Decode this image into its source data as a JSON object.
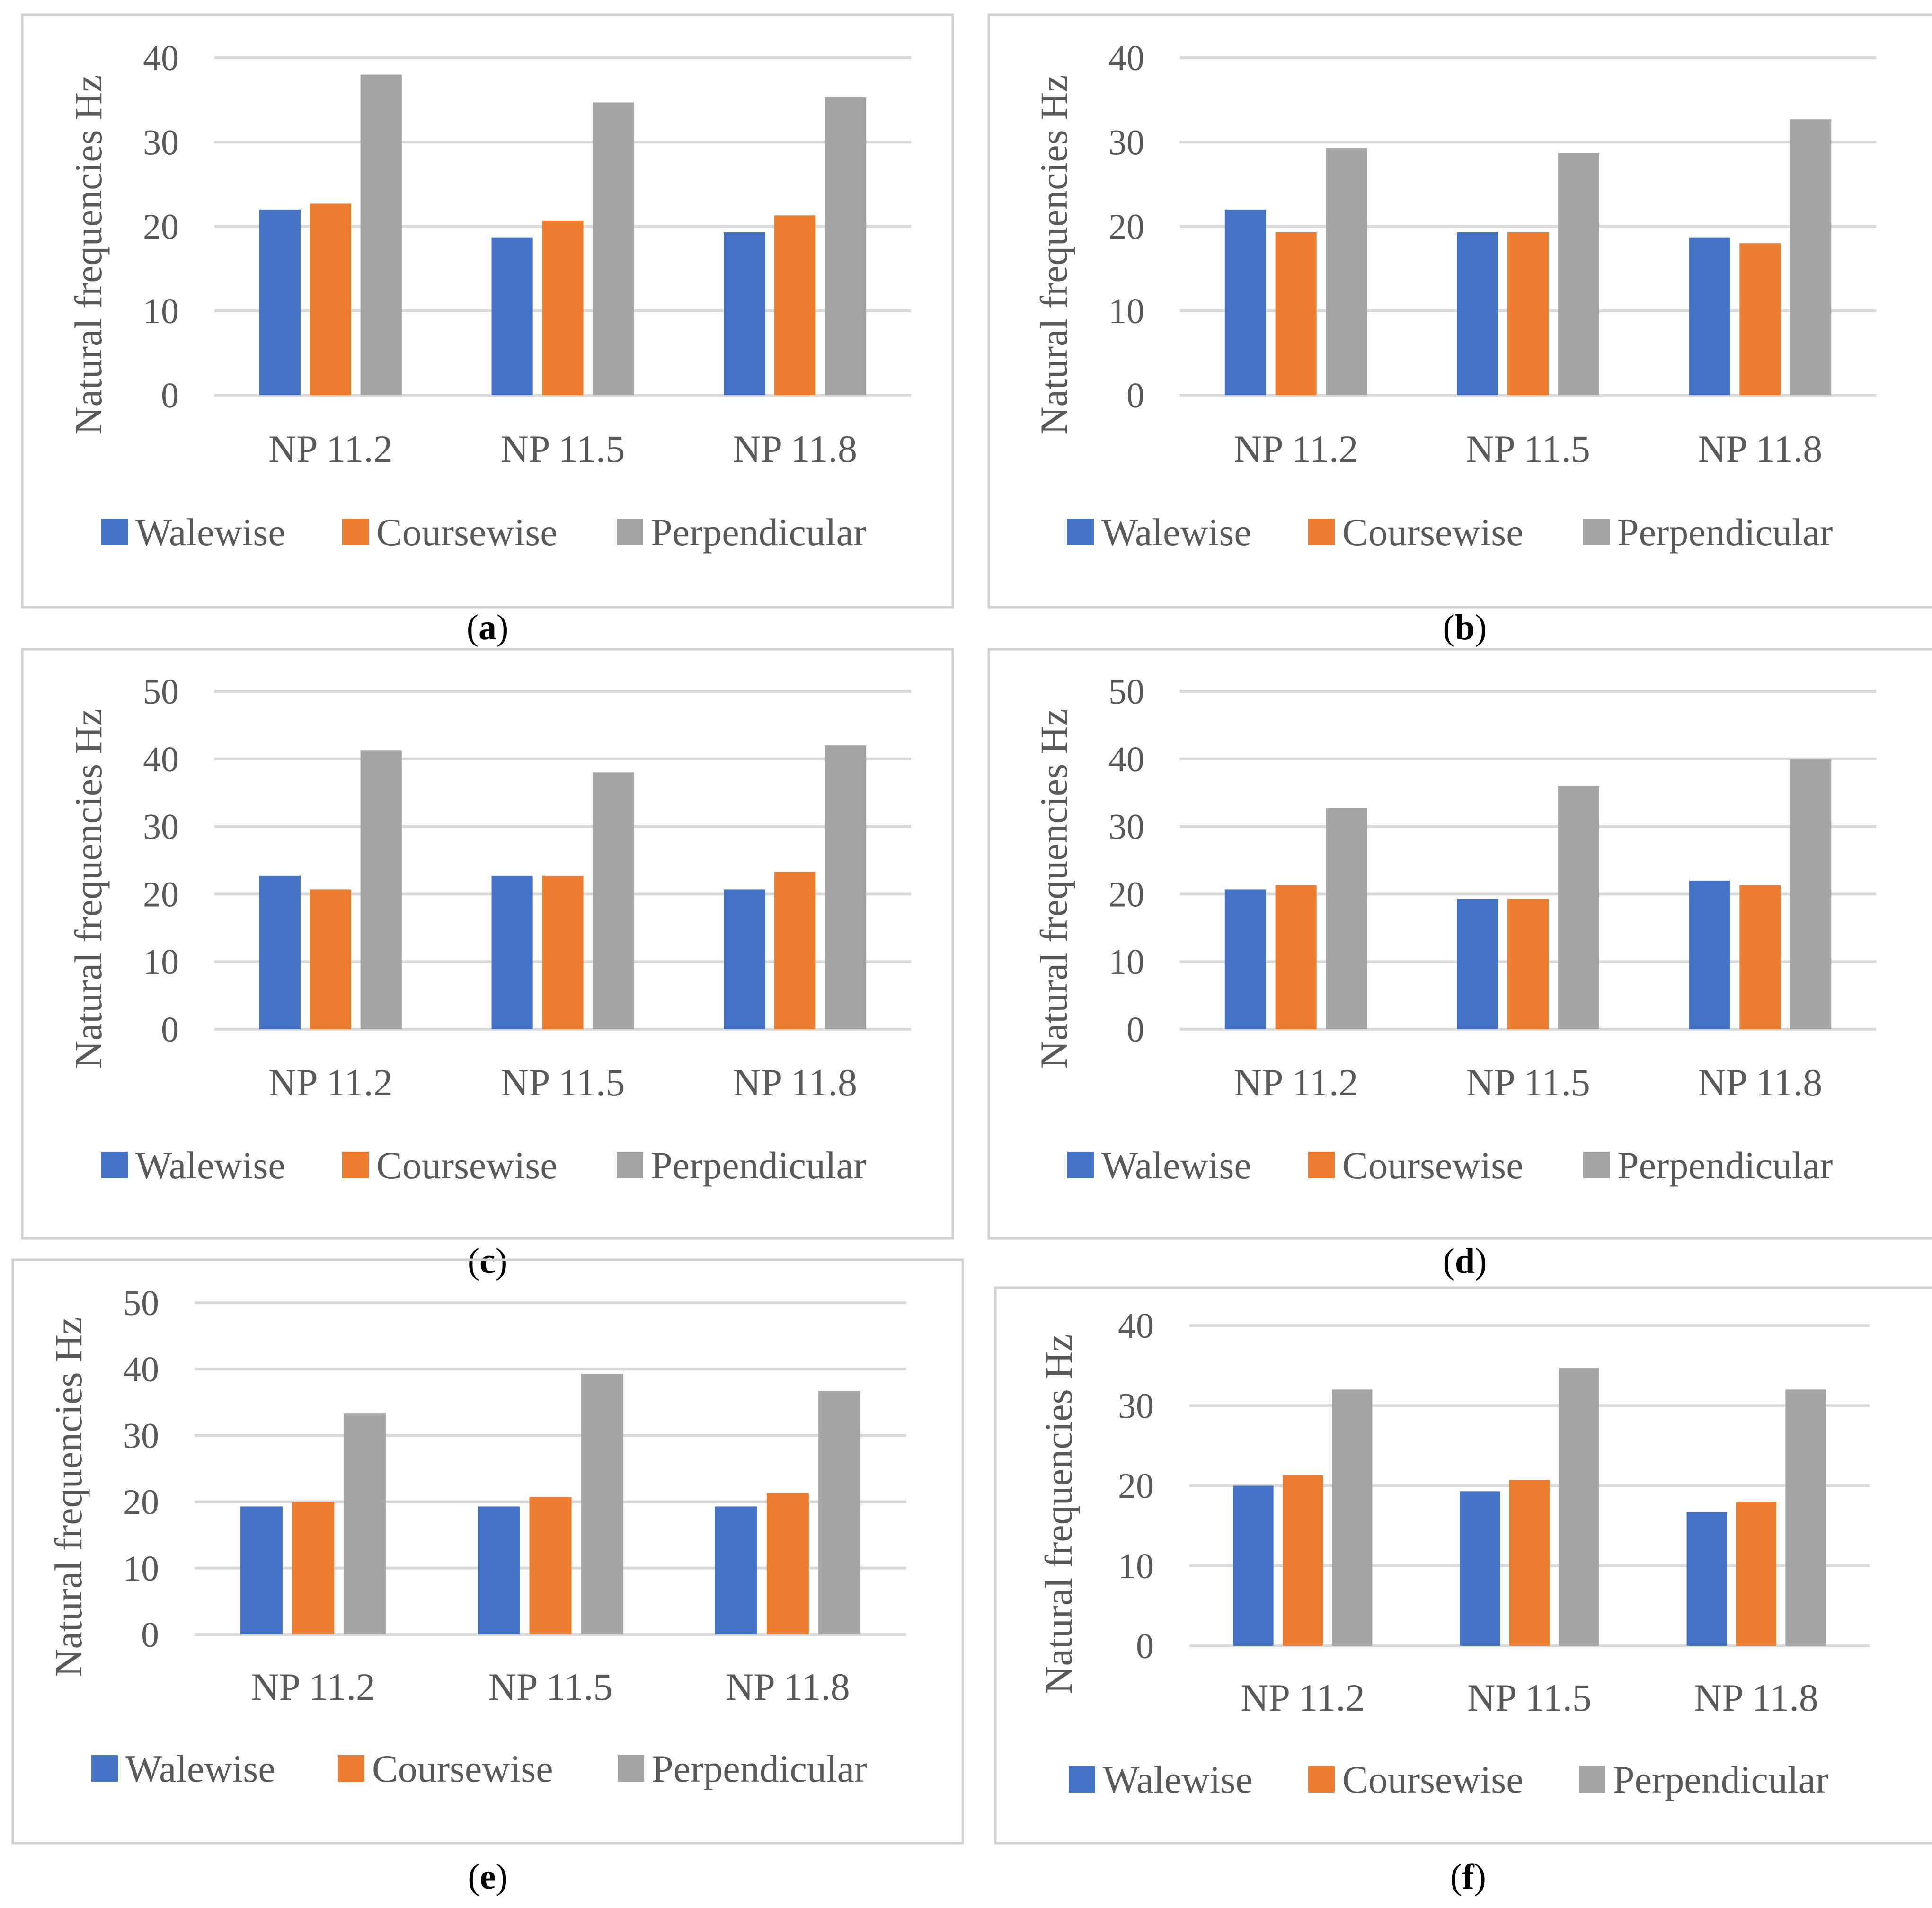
{
  "colors": {
    "Walewise": "#4472C4",
    "Coursewise": "#ED7D31",
    "Perpendicular": "#A5A5A5",
    "gridline": "#D9D9D9",
    "frame": "#D0D0D0",
    "text": "#595959",
    "caption": "#000000"
  },
  "chart_data": [
    {
      "type": "bar",
      "panel": "a",
      "caption": "a",
      "categories": [
        "NP 11.2",
        "NP 11.5",
        "NP 11.8"
      ],
      "ylabel": "Natural frequencies Hz",
      "xlabel": "",
      "ylim": [
        0,
        40
      ],
      "yticks": [
        0,
        10,
        20,
        30,
        40
      ],
      "grid": true,
      "legend_position": "bottom",
      "series": [
        {
          "name": "Walewise",
          "values": [
            22.0,
            18.7,
            19.3
          ]
        },
        {
          "name": "Coursewise",
          "values": [
            22.7,
            20.7,
            21.3
          ]
        },
        {
          "name": "Perpendicular",
          "values": [
            38.0,
            34.7,
            35.3
          ]
        }
      ]
    },
    {
      "type": "bar",
      "panel": "b",
      "caption": "b",
      "categories": [
        "NP 11.2",
        "NP 11.5",
        "NP 11.8"
      ],
      "ylabel": "Natural frequencies Hz",
      "xlabel": "",
      "ylim": [
        0,
        40
      ],
      "yticks": [
        0,
        10,
        20,
        30,
        40
      ],
      "grid": true,
      "legend_position": "bottom",
      "series": [
        {
          "name": "Walewise",
          "values": [
            22.0,
            19.3,
            18.7
          ]
        },
        {
          "name": "Coursewise",
          "values": [
            19.3,
            19.3,
            18.0
          ]
        },
        {
          "name": "Perpendicular",
          "values": [
            29.3,
            28.7,
            32.7
          ]
        }
      ]
    },
    {
      "type": "bar",
      "panel": "c",
      "caption": "c",
      "categories": [
        "NP 11.2",
        "NP 11.5",
        "NP 11.8"
      ],
      "ylabel": "Natural frequencies Hz",
      "xlabel": "",
      "ylim": [
        0,
        50
      ],
      "yticks": [
        0,
        10,
        20,
        30,
        40,
        50
      ],
      "grid": true,
      "legend_position": "bottom",
      "series": [
        {
          "name": "Walewise",
          "values": [
            22.7,
            22.7,
            20.7
          ]
        },
        {
          "name": "Coursewise",
          "values": [
            20.7,
            22.7,
            23.3
          ]
        },
        {
          "name": "Perpendicular",
          "values": [
            41.3,
            38.0,
            42.0
          ]
        }
      ]
    },
    {
      "type": "bar",
      "panel": "d",
      "caption": "d",
      "categories": [
        "NP 11.2",
        "NP 11.5",
        "NP 11.8"
      ],
      "ylabel": "Natural frequencies Hz",
      "xlabel": "",
      "ylim": [
        0,
        50
      ],
      "yticks": [
        0,
        10,
        20,
        30,
        40,
        50
      ],
      "grid": true,
      "legend_position": "bottom",
      "series": [
        {
          "name": "Walewise",
          "values": [
            20.7,
            19.3,
            22.0
          ]
        },
        {
          "name": "Coursewise",
          "values": [
            21.3,
            19.3,
            21.3
          ]
        },
        {
          "name": "Perpendicular",
          "values": [
            32.7,
            36.0,
            40.0
          ]
        }
      ]
    },
    {
      "type": "bar",
      "panel": "e",
      "caption": "e",
      "categories": [
        "NP 11.2",
        "NP 11.5",
        "NP 11.8"
      ],
      "ylabel": "Natural frequencies Hz",
      "xlabel": "",
      "ylim": [
        0,
        50
      ],
      "yticks": [
        0,
        10,
        20,
        30,
        40,
        50
      ],
      "grid": true,
      "legend_position": "bottom",
      "series": [
        {
          "name": "Walewise",
          "values": [
            19.3,
            19.3,
            19.3
          ]
        },
        {
          "name": "Coursewise",
          "values": [
            20.0,
            20.7,
            21.3
          ]
        },
        {
          "name": "Perpendicular",
          "values": [
            33.3,
            39.3,
            36.7
          ]
        }
      ]
    },
    {
      "type": "bar",
      "panel": "f",
      "caption": "f",
      "categories": [
        "NP 11.2",
        "NP 11.5",
        "NP 11.8"
      ],
      "ylabel": "Natural frequencies Hz",
      "xlabel": "",
      "ylim": [
        0,
        40
      ],
      "yticks": [
        0,
        10,
        20,
        30,
        40
      ],
      "grid": true,
      "legend_position": "bottom",
      "series": [
        {
          "name": "Walewise",
          "values": [
            20.0,
            19.3,
            16.7
          ]
        },
        {
          "name": "Coursewise",
          "values": [
            21.3,
            20.7,
            18.0
          ]
        },
        {
          "name": "Perpendicular",
          "values": [
            32.0,
            34.7,
            32.0
          ]
        }
      ]
    }
  ]
}
